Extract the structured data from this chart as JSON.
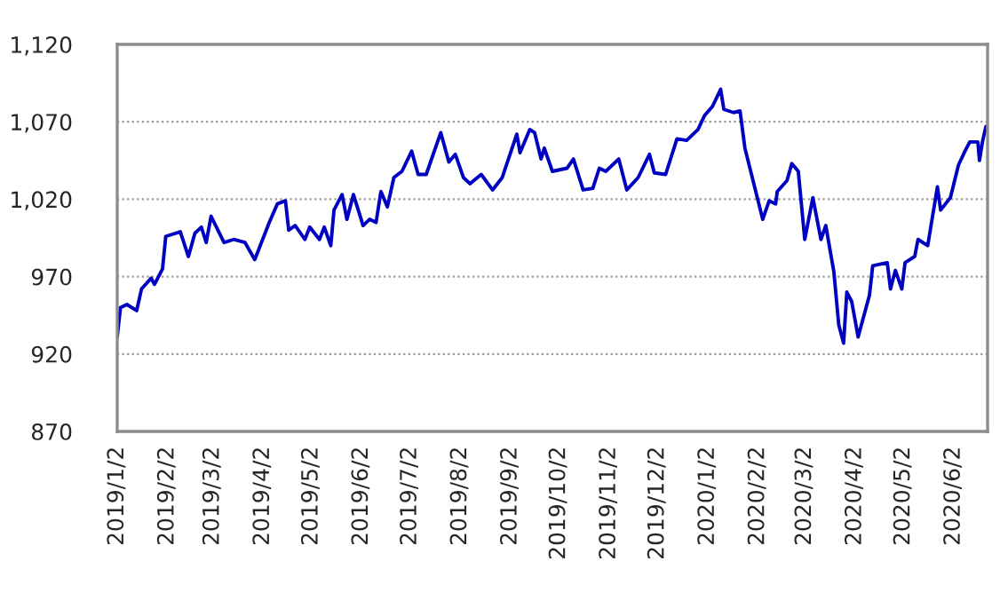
{
  "chart_data": {
    "type": "line",
    "x": [
      "2019-01-02",
      "2019-01-04",
      "2019-01-08",
      "2019-01-14",
      "2019-01-17",
      "2019-01-23",
      "2019-01-25",
      "2019-01-30",
      "2019-02-01",
      "2019-02-10",
      "2019-02-15",
      "2019-02-19",
      "2019-02-23",
      "2019-02-26",
      "2019-03-01",
      "2019-03-09",
      "2019-03-15",
      "2019-03-22",
      "2019-03-28",
      "2019-04-06",
      "2019-04-11",
      "2019-04-16",
      "2019-04-18",
      "2019-04-22",
      "2019-04-28",
      "2019-05-01",
      "2019-05-07",
      "2019-05-10",
      "2019-05-14",
      "2019-05-16",
      "2019-05-21",
      "2019-05-24",
      "2019-05-28",
      "2019-06-03",
      "2019-06-07",
      "2019-06-11",
      "2019-06-14",
      "2019-06-18",
      "2019-06-22",
      "2019-06-27",
      "2019-07-03",
      "2019-07-07",
      "2019-07-12",
      "2019-07-21",
      "2019-07-26",
      "2019-07-30",
      "2019-08-04",
      "2019-08-08",
      "2019-08-15",
      "2019-08-22",
      "2019-08-28",
      "2019-09-06",
      "2019-09-08",
      "2019-09-14",
      "2019-09-17",
      "2019-09-21",
      "2019-09-23",
      "2019-09-28",
      "2019-10-07",
      "2019-10-11",
      "2019-10-17",
      "2019-10-23",
      "2019-10-27",
      "2019-10-31",
      "2019-11-08",
      "2019-11-13",
      "2019-11-20",
      "2019-11-27",
      "2019-11-30",
      "2019-12-07",
      "2019-12-14",
      "2019-12-20",
      "2019-12-27",
      "2019-12-31",
      "2020-01-05",
      "2020-01-10",
      "2020-01-12",
      "2020-01-18",
      "2020-01-22",
      "2020-01-25",
      "2020-02-05",
      "2020-02-09",
      "2020-02-13",
      "2020-02-14",
      "2020-02-20",
      "2020-02-23",
      "2020-02-27",
      "2020-03-02",
      "2020-03-07",
      "2020-03-12",
      "2020-03-15",
      "2020-03-20",
      "2020-03-23",
      "2020-03-26",
      "2020-03-28",
      "2020-03-31",
      "2020-04-04",
      "2020-04-11",
      "2020-04-13",
      "2020-04-22",
      "2020-04-24",
      "2020-04-27",
      "2020-05-01",
      "2020-05-03",
      "2020-05-09",
      "2020-05-11",
      "2020-05-17",
      "2020-05-23",
      "2020-05-25",
      "2020-05-31",
      "2020-06-05",
      "2020-06-09",
      "2020-06-12",
      "2020-06-17",
      "2020-06-18",
      "2020-06-20",
      "2020-06-22"
    ],
    "series": [
      {
        "color": "#0000c0",
        "values": [
          931,
          950,
          952,
          948,
          962,
          969,
          965,
          975,
          996,
          999,
          983,
          998,
          1002,
          992,
          1009,
          992,
          994,
          992,
          981,
          1005,
          1017,
          1019,
          1000,
          1003,
          994,
          1002,
          994,
          1002,
          990,
          1013,
          1023,
          1007,
          1023,
          1003,
          1007,
          1005,
          1025,
          1015,
          1034,
          1038,
          1051,
          1036,
          1036,
          1063,
          1044,
          1049,
          1034,
          1030,
          1036,
          1026,
          1034,
          1062,
          1050,
          1065,
          1063,
          1046,
          1053,
          1038,
          1040,
          1046,
          1026,
          1027,
          1040,
          1038,
          1046,
          1026,
          1034,
          1049,
          1037,
          1036,
          1059,
          1058,
          1065,
          1074,
          1080,
          1091,
          1078,
          1076,
          1077,
          1053,
          1007,
          1019,
          1017,
          1025,
          1032,
          1043,
          1038,
          994,
          1021,
          994,
          1003,
          973,
          939,
          927,
          960,
          954,
          931,
          958,
          977,
          979,
          962,
          974,
          962,
          979,
          983,
          994,
          990,
          1028,
          1013,
          1021,
          1042,
          1051,
          1057,
          1057,
          1045,
          1058,
          1067
        ]
      }
    ],
    "xlim": [
      "2019-01-02",
      "2020-06-23"
    ],
    "xticks": [
      {
        "value": "2019-01-02",
        "label": "2019/1/2"
      },
      {
        "value": "2019-02-02",
        "label": "2019/2/2"
      },
      {
        "value": "2019-03-02",
        "label": "2019/3/2"
      },
      {
        "value": "2019-04-02",
        "label": "2019/4/2"
      },
      {
        "value": "2019-05-02",
        "label": "2019/5/2"
      },
      {
        "value": "2019-06-02",
        "label": "2019/6/2"
      },
      {
        "value": "2019-07-02",
        "label": "2019/7/2"
      },
      {
        "value": "2019-08-02",
        "label": "2019/8/2"
      },
      {
        "value": "2019-09-02",
        "label": "2019/9/2"
      },
      {
        "value": "2019-10-02",
        "label": "2019/10/2"
      },
      {
        "value": "2019-11-02",
        "label": "2019/11/2"
      },
      {
        "value": "2019-12-02",
        "label": "2019/12/2"
      },
      {
        "value": "2020-01-02",
        "label": "2020/1/2"
      },
      {
        "value": "2020-02-02",
        "label": "2020/2/2"
      },
      {
        "value": "2020-03-02",
        "label": "2020/3/2"
      },
      {
        "value": "2020-04-02",
        "label": "2020/4/2"
      },
      {
        "value": "2020-05-02",
        "label": "2020/5/2"
      },
      {
        "value": "2020-06-02",
        "label": "2020/6/2"
      }
    ],
    "ylim": [
      870,
      1120
    ],
    "yticks": [
      870,
      920,
      970,
      {
        "value": 1020,
        "label": "1,020"
      },
      {
        "value": 1070,
        "label": "1,070"
      },
      {
        "value": 1120,
        "label": "1,120"
      }
    ],
    "grid": "y",
    "legend": false,
    "marker": "none",
    "line_style": "solid"
  }
}
